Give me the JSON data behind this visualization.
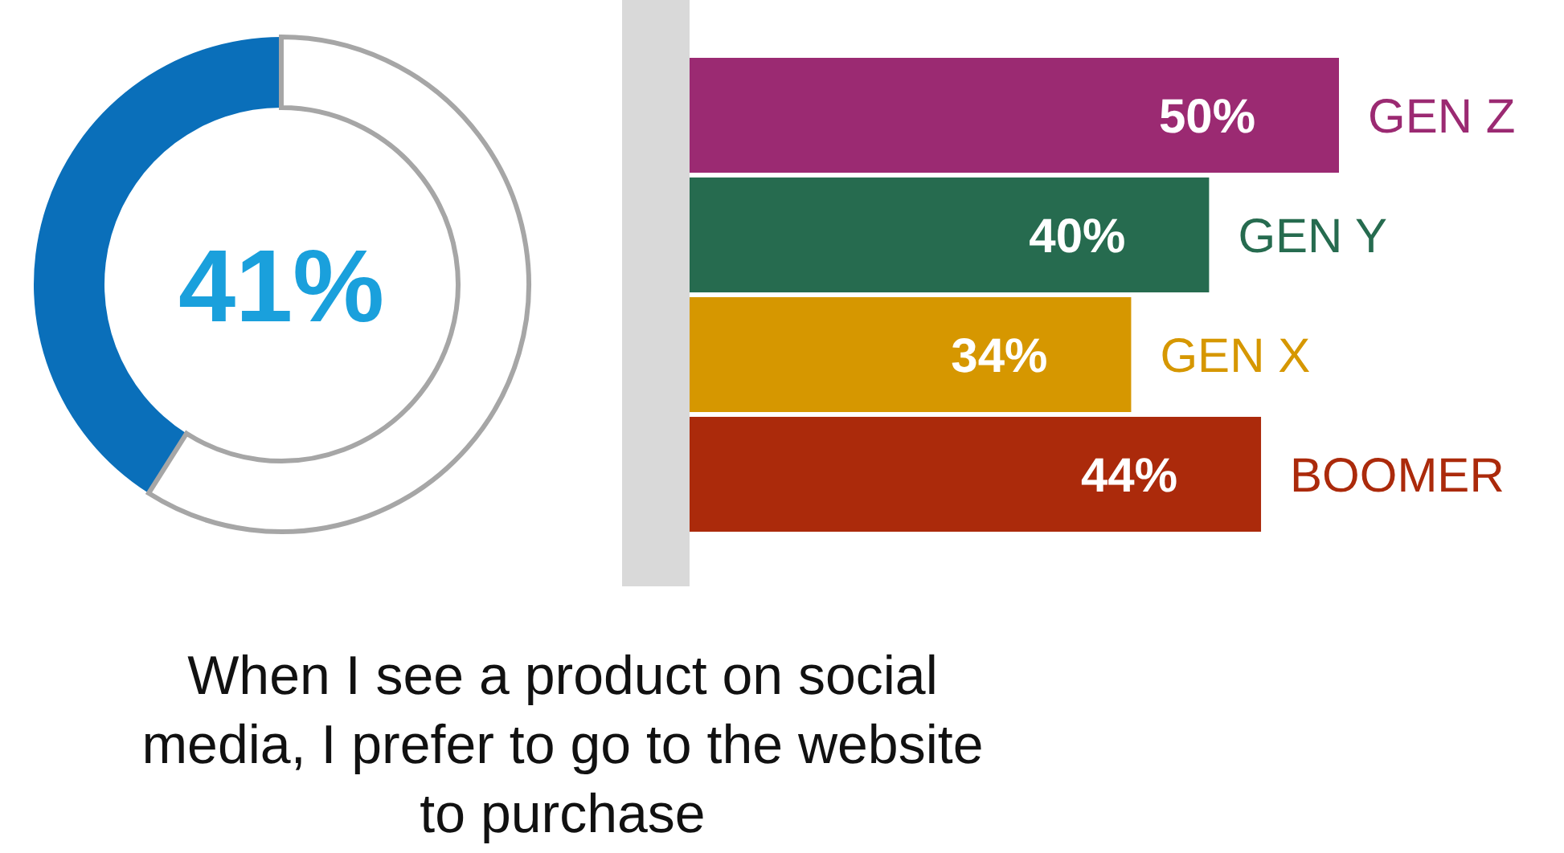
{
  "chart_data": [
    {
      "type": "donut",
      "title": "When I see a product on social media, I prefer to go to the website to purchase",
      "categories": [
        null,
        null
      ],
      "values": [
        41,
        59
      ],
      "colors": [
        "#0a6fba",
        "#ffffff"
      ],
      "annotations": [
        "41%"
      ]
    },
    {
      "type": "bar",
      "orientation": "horizontal",
      "categories": [
        "GEN Z",
        "GEN Y",
        "GEN X",
        "BOOMER"
      ],
      "values": [
        50,
        40,
        34,
        44
      ],
      "colors": [
        "#9b2a72",
        "#266b4f",
        "#d69700",
        "#ab2a0b"
      ],
      "value_labels": [
        "50%",
        "40%",
        "34%",
        "44%"
      ]
    }
  ]
}
